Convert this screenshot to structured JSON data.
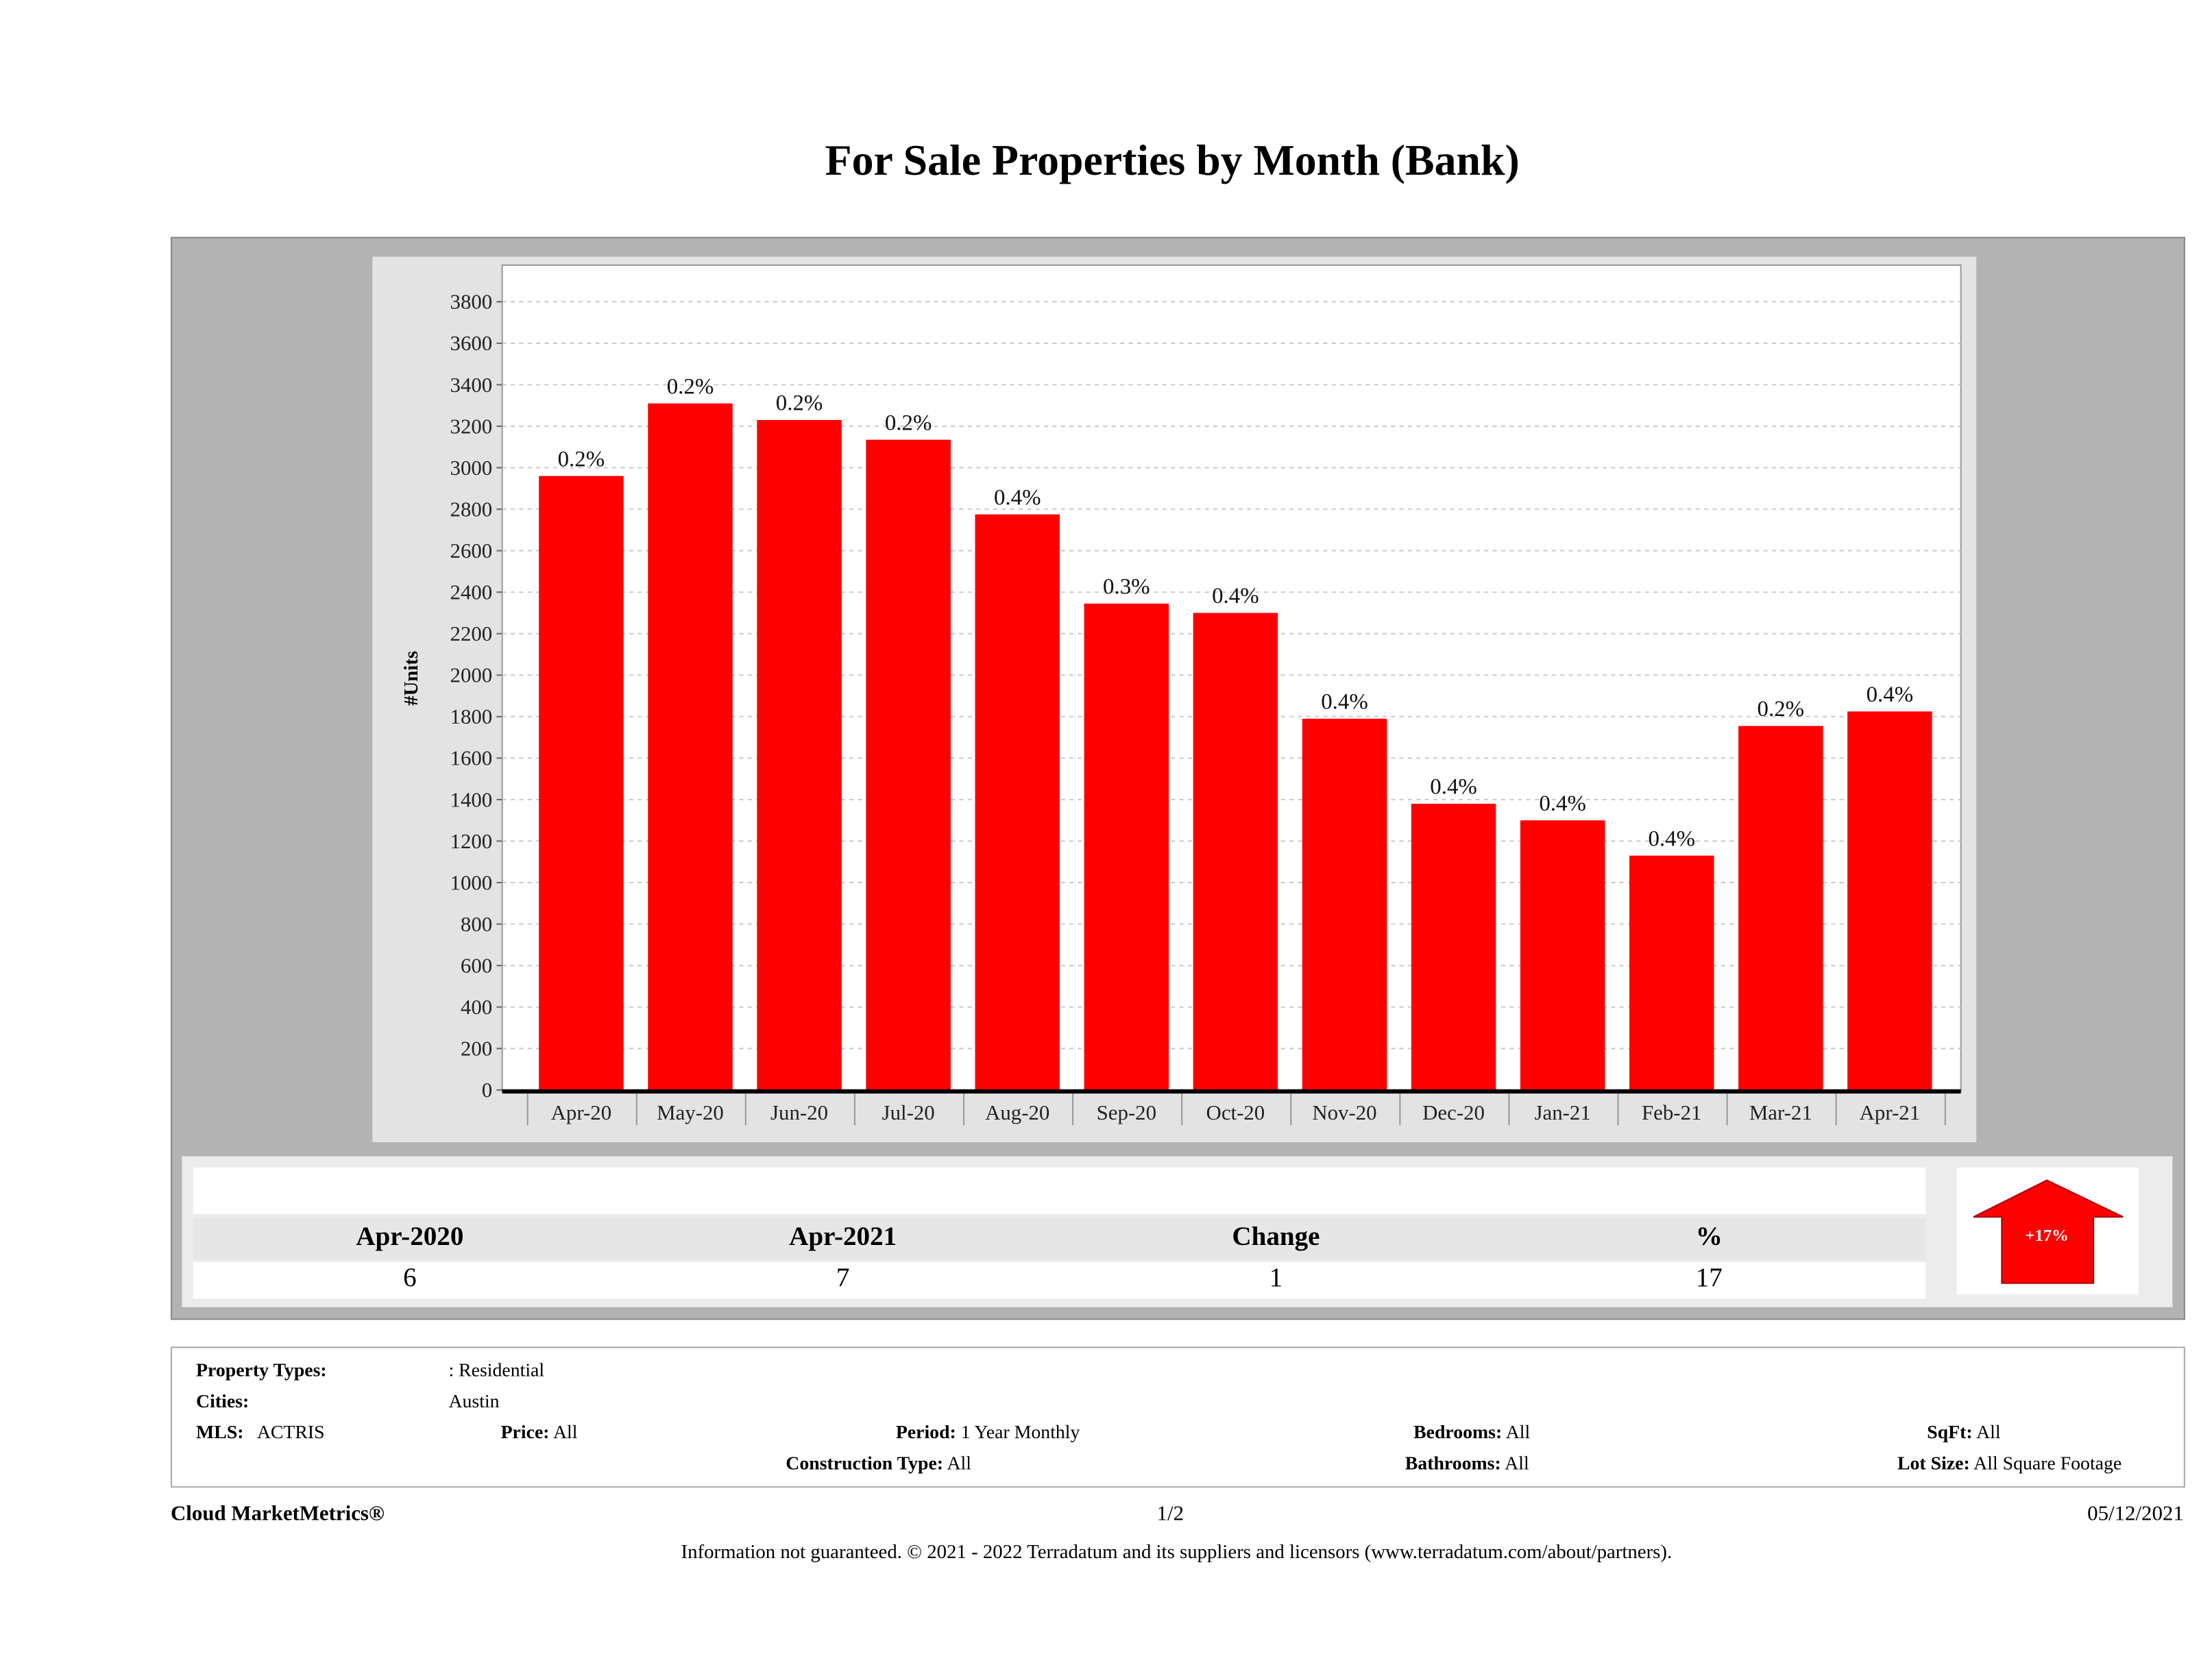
{
  "title": "For Sale Properties by Month (Bank)",
  "chart_data": {
    "type": "bar",
    "title": "For Sale Properties by Month (Bank)",
    "xlabel": "",
    "ylabel": "#Units",
    "ylim": [
      0,
      3900
    ],
    "yticks": [
      0,
      200,
      400,
      600,
      800,
      1000,
      1200,
      1400,
      1600,
      1800,
      2000,
      2200,
      2400,
      2600,
      2800,
      3000,
      3200,
      3400,
      3600,
      3800
    ],
    "grid": true,
    "categories": [
      "Apr-20",
      "May-20",
      "Jun-20",
      "Jul-20",
      "Aug-20",
      "Sep-20",
      "Oct-20",
      "Nov-20",
      "Dec-20",
      "Jan-21",
      "Feb-21",
      "Mar-21",
      "Apr-21"
    ],
    "values": [
      2960,
      3310,
      3230,
      3135,
      2775,
      2345,
      2300,
      1790,
      1380,
      1300,
      1130,
      1755,
      1825
    ],
    "data_labels": [
      "0.2%",
      "0.2%",
      "0.2%",
      "0.2%",
      "0.4%",
      "0.3%",
      "0.4%",
      "0.4%",
      "0.4%",
      "0.4%",
      "0.4%",
      "0.2%",
      "0.4%"
    ],
    "bar_color": "#ff0000"
  },
  "summary": {
    "headers": [
      "Apr-2020",
      "Apr-2021",
      "Change",
      "%"
    ],
    "values": [
      "6",
      "7",
      "1",
      "17"
    ],
    "badge": "+17%",
    "trend": "up",
    "badge_color": "#ff0000"
  },
  "filters": {
    "property_types_label": "Property Types:",
    "property_types_value": ": Residential",
    "cities_label": "Cities:",
    "cities_value": "Austin",
    "mls_label": "MLS:",
    "mls_value": "ACTRIS",
    "price_label": "Price:",
    "price_value": "All",
    "period_label": "Period:",
    "period_value": "1 Year Monthly",
    "construction_label": "Construction Type:",
    "construction_value": "All",
    "bedrooms_label": "Bedrooms:",
    "bedrooms_value": "All",
    "bathrooms_label": "Bathrooms:",
    "bathrooms_value": "All",
    "sqft_label": "SqFt:",
    "sqft_value": "All",
    "lotsize_label": "Lot Size:",
    "lotsize_value": "All Square Footage"
  },
  "footer": {
    "brand": "Cloud MarketMetrics®",
    "page": "1/2",
    "date": "05/12/2021",
    "disclaimer": "Information not guaranteed. © 2021 - 2022 Terradatum and its suppliers and licensors (www.terradatum.com/about/partners)."
  }
}
